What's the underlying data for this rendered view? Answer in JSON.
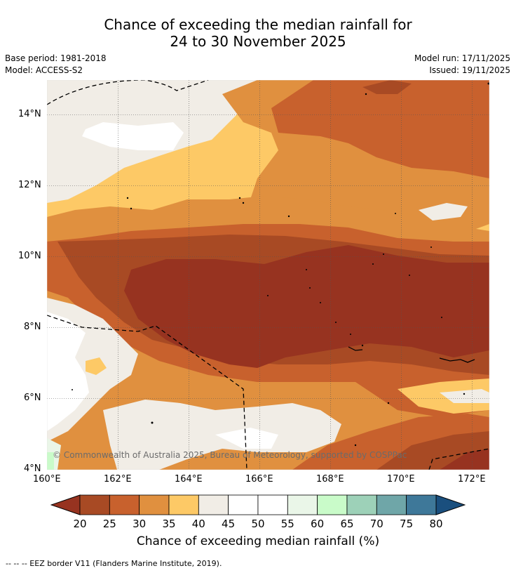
{
  "title": {
    "line1": "Chance of exceeding the median rainfall for",
    "line2": "24 to 30 November 2025"
  },
  "meta": {
    "base_period": "Base period: 1981-2018",
    "model": "Model: ACCESS-S2",
    "model_run": "Model run: 17/11/2025",
    "issued": "Issued: 19/11/2025"
  },
  "map": {
    "lat_ticks": [
      "14°N",
      "12°N",
      "10°N",
      "8°N",
      "6°N",
      "4°N"
    ],
    "lon_ticks": [
      "160°E",
      "162°E",
      "164°E",
      "166°E",
      "168°E",
      "170°E",
      "172°E"
    ],
    "copyright": "© Commonwealth of Australia 2025, Bureau of Meteorology, supported by COSPPac"
  },
  "colorbar": {
    "labels": [
      "20",
      "25",
      "30",
      "35",
      "40",
      "45",
      "50",
      "55",
      "60",
      "65",
      "70",
      "75",
      "80"
    ],
    "colors": [
      "#a84a24",
      "#c8612d",
      "#e0903f",
      "#fdc966",
      "#f1ede6",
      "#ffffff",
      "#ffffff",
      "#eaf6e8",
      "#c9fbc9",
      "#9dd1b8",
      "#6fa6a8",
      "#3e7899"
    ],
    "low_color": "#973320",
    "high_color": "#1a4f7e",
    "title": "Chance of exceeding median rainfall (%)"
  },
  "footnote": "--  --  -- EEZ border V11 (Flanders Marine Institute, 2019)."
}
